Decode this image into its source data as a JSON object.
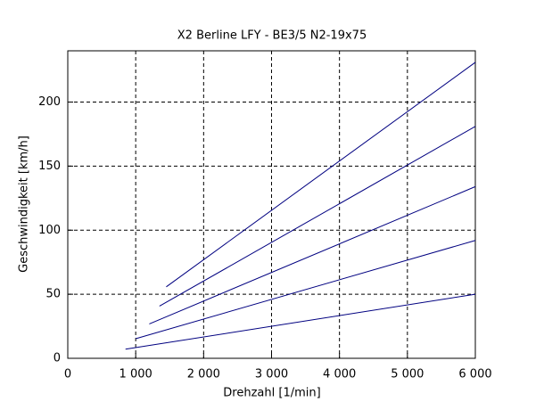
{
  "chart_data": {
    "type": "line",
    "title": "X2 Berline LFY - BE3/5 N2-19x75",
    "x_label": "Drehzahl [1/min]",
    "y_label": "Geschwindigkeit [km/h]",
    "xlim": [
      0,
      6000
    ],
    "xticks": [
      0,
      {
        "value": 1000,
        "label": "1 000"
      },
      {
        "value": 2000,
        "label": "2 000"
      },
      {
        "value": 3000,
        "label": "3 000"
      },
      {
        "value": 4000,
        "label": "4 000"
      },
      {
        "value": 5000,
        "label": "5 000"
      },
      {
        "value": 6000,
        "label": "6 000"
      }
    ],
    "ylim": [
      0,
      240
    ],
    "yticks": [
      0,
      50,
      100,
      150,
      200
    ],
    "grid": true,
    "series": [
      {
        "color": "#000080",
        "x": [
          850,
          6000
        ],
        "values": [
          7.1,
          50
        ]
      },
      {
        "color": "#000080",
        "x": [
          1000,
          6000
        ],
        "values": [
          15.3,
          92
        ]
      },
      {
        "color": "#000080",
        "x": [
          1200,
          6000
        ],
        "values": [
          26.8,
          134
        ]
      },
      {
        "color": "#000080",
        "x": [
          1350,
          6000
        ],
        "values": [
          40.7,
          181
        ]
      },
      {
        "color": "#000080",
        "x": [
          1450,
          6000
        ],
        "values": [
          55.8,
          231
        ]
      }
    ]
  }
}
